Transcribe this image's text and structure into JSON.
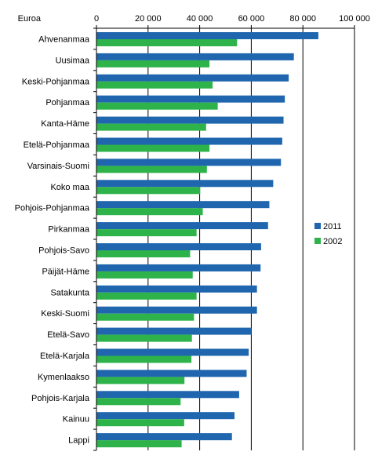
{
  "chart_data": {
    "type": "bar",
    "orientation": "horizontal",
    "unit_label": "Euroa",
    "xlim": [
      0,
      100000
    ],
    "ticks": [
      {
        "value": 0,
        "label": "0"
      },
      {
        "value": 20000,
        "label": "20 000"
      },
      {
        "value": 40000,
        "label": "40 000"
      },
      {
        "value": 60000,
        "label": "60 000"
      },
      {
        "value": 80000,
        "label": "80 000"
      },
      {
        "value": 100000,
        "label": "100 000"
      }
    ],
    "grid": true,
    "legend_position": "right",
    "categories": [
      "Ahvenanmaa",
      "Uusimaa",
      "Keski-Pohjanmaa",
      "Pohjanmaa",
      "Kanta-Häme",
      "Etelä-Pohjanmaa",
      "Varsinais-Suomi",
      "Koko maa",
      "Pohjois-Pohjanmaa",
      "Pirkanmaa",
      "Pohjois-Savo",
      "Päijät-Häme",
      "Satakunta",
      "Keski-Suomi",
      "Etelä-Savo",
      "Etelä-Karjala",
      "Kymenlaakso",
      "Pohjois-Karjala",
      "Kainuu",
      "Lappi"
    ],
    "series": [
      {
        "name": "2011",
        "color": "#1f66ae",
        "values": [
          86000,
          76500,
          74500,
          73000,
          72500,
          72000,
          71500,
          68500,
          67000,
          66500,
          63800,
          63600,
          62200,
          62200,
          60000,
          59000,
          58200,
          55300,
          53500,
          52500
        ]
      },
      {
        "name": "2002",
        "color": "#2eb34a",
        "values": [
          54500,
          43800,
          45000,
          47000,
          42500,
          43800,
          42800,
          40200,
          41200,
          38800,
          36300,
          37300,
          38800,
          37800,
          37000,
          36800,
          34100,
          32600,
          34000,
          33000
        ]
      }
    ]
  }
}
